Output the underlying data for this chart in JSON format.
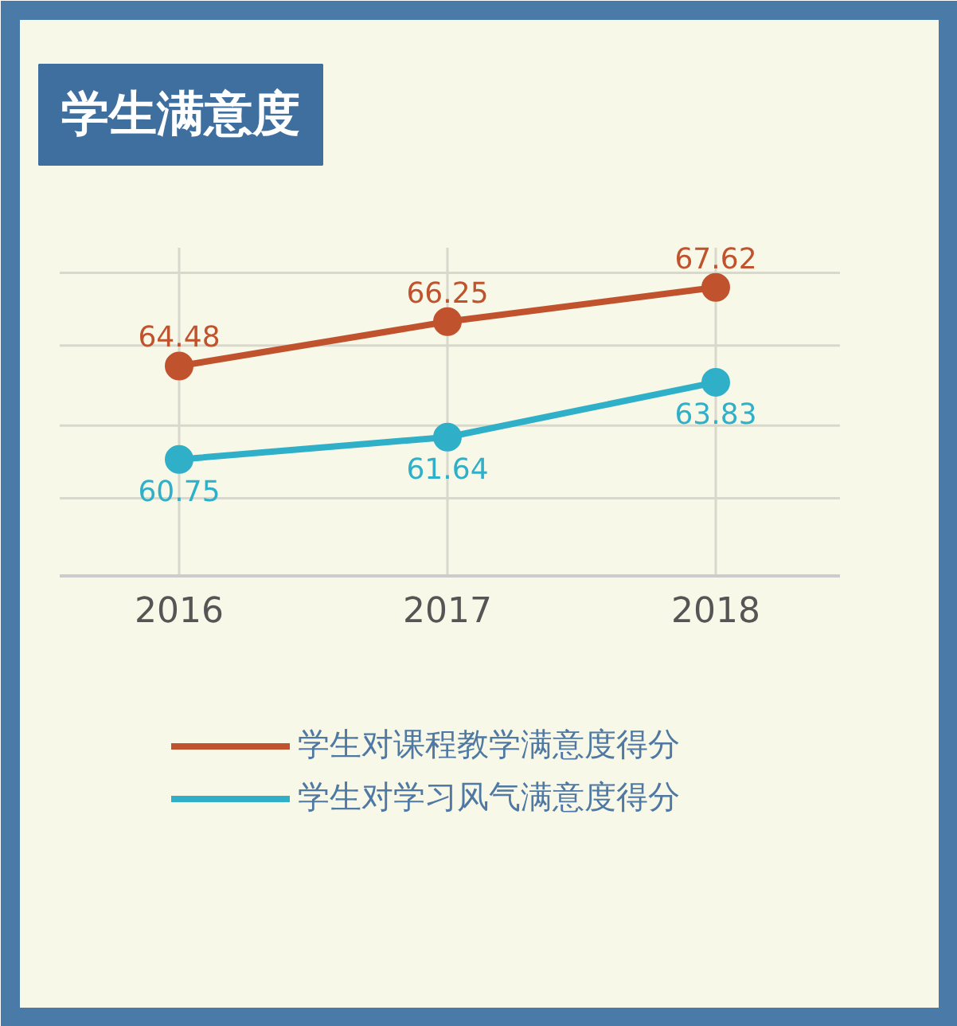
{
  "chart_data": {
    "type": "line",
    "title": "学生满意度",
    "categories": [
      "2016",
      "2017",
      "2018"
    ],
    "series": [
      {
        "name": "学生对课程教学满意度得分",
        "color": "#c0532e",
        "values": [
          64.48,
          66.25,
          67.62
        ]
      },
      {
        "name": "学生对学习风气满意度得分",
        "color": "#2fb0c8",
        "values": [
          60.75,
          61.64,
          63.83
        ]
      }
    ],
    "relative": false,
    "ylim": [
      56.1,
      69.2
    ],
    "yticks": [
      {
        "value": 59.2,
        "label": null
      },
      {
        "value": 62.1,
        "label": null
      },
      {
        "value": 65.3,
        "label": null
      },
      {
        "value": 68.2,
        "label": null
      }
    ],
    "data_labels": true,
    "grid": true,
    "legend": "bottom",
    "marker": "circle",
    "line_style": "solid",
    "tick_labels": "x"
  }
}
